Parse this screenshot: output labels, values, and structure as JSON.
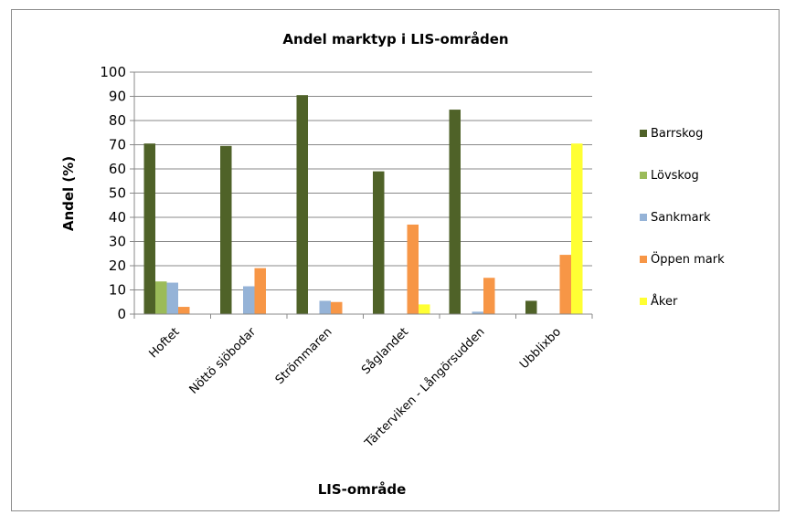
{
  "chart_data": {
    "type": "bar",
    "title": "Andel marktyp i LIS-områden",
    "xlabel": "LIS-område",
    "ylabel": "Andel (%)",
    "ylim": [
      0,
      100
    ],
    "yticks": [
      0,
      10,
      20,
      30,
      40,
      50,
      60,
      70,
      80,
      90,
      100
    ],
    "grid": true,
    "legend_position": "right",
    "categories": [
      "Hoftet",
      "Nöttö sjöbodar",
      "Strömmaren",
      "Såglandet",
      "Tärterviken - Långörsudden",
      "Ubblixbo"
    ],
    "series": [
      {
        "name": "Barrskog",
        "color": "#4f6228",
        "values": [
          70.5,
          69.5,
          90.5,
          59,
          84.5,
          5.5
        ]
      },
      {
        "name": "Lövskog",
        "color": "#9bbb59",
        "values": [
          13.5,
          0,
          0,
          0,
          0,
          0
        ]
      },
      {
        "name": "Sankmark",
        "color": "#95b3d7",
        "values": [
          13,
          11.5,
          5.5,
          0,
          1,
          0
        ]
      },
      {
        "name": "Öppen mark",
        "color": "#f79646",
        "values": [
          3,
          19,
          5,
          37,
          15,
          24.5
        ]
      },
      {
        "name": "Åker",
        "color": "#ffff33",
        "values": [
          0,
          0,
          0,
          4,
          0,
          70.5
        ]
      }
    ]
  }
}
